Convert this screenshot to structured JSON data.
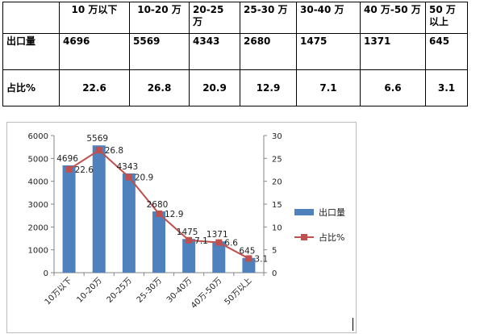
{
  "table": {
    "headers": [
      "",
      "10 万以下",
      "10-20 万",
      "20-25 万",
      "25-30 万",
      "30-40 万",
      "40 万-50 万",
      "50 万以上"
    ],
    "rows": [
      {
        "label": "出口量",
        "values": [
          "4696",
          "5569",
          "4343",
          "2680",
          "1475",
          "1371",
          "645"
        ]
      },
      {
        "label": "占比%",
        "values": [
          "22.6",
          "26.8",
          "20.9",
          "12.9",
          "7.1",
          "6.6",
          "3.1"
        ]
      }
    ]
  },
  "chart_data": {
    "type": "bar",
    "categories": [
      "10万以下",
      "10-20万",
      "20-25万",
      "25-30万",
      "30-40万",
      "40万-50万",
      "50万以上"
    ],
    "series": [
      {
        "name": "出口量",
        "type": "bar",
        "axis": "left",
        "color": "#4f81bd",
        "values": [
          4696,
          5569,
          4343,
          2680,
          1475,
          1371,
          645
        ]
      },
      {
        "name": "占比%",
        "type": "line",
        "axis": "right",
        "color": "#c0504d",
        "values": [
          22.6,
          26.8,
          20.9,
          12.9,
          7.1,
          6.6,
          3.1
        ]
      }
    ],
    "y_left": {
      "min": 0,
      "max": 6000,
      "ticks": [
        "0",
        "1000",
        "2000",
        "3000",
        "4000",
        "5000",
        "6000"
      ]
    },
    "y_right": {
      "min": 0,
      "max": 30,
      "ticks": [
        "0",
        "5",
        "10",
        "15",
        "20",
        "25",
        "30"
      ]
    },
    "legend": {
      "position": "right",
      "items": [
        "出口量",
        "占比%"
      ]
    },
    "grid": false
  }
}
